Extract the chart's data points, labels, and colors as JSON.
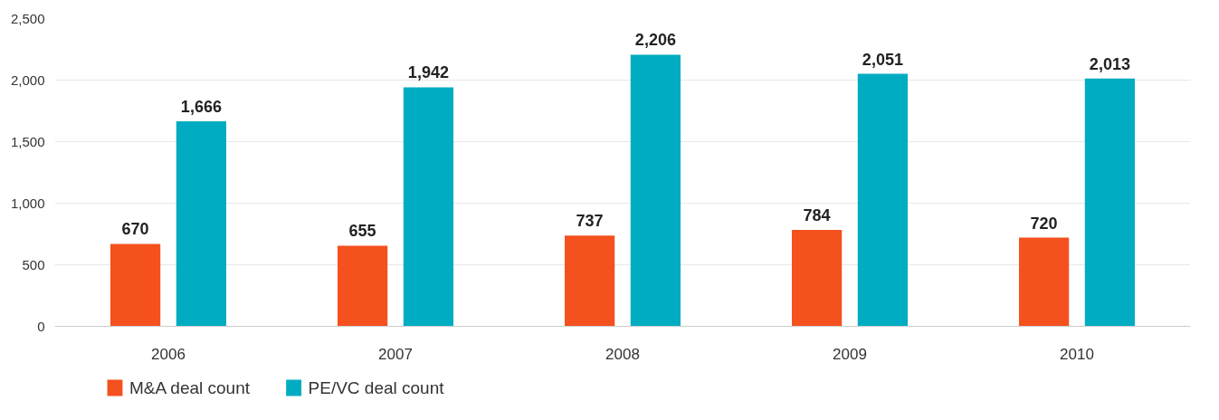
{
  "chart_data": {
    "type": "bar",
    "categories": [
      "2006",
      "2007",
      "2008",
      "2009",
      "2010"
    ],
    "series": [
      {
        "name": "M&A deal count",
        "color": "#f4511e",
        "values": [
          670,
          655,
          737,
          784,
          720
        ],
        "value_labels": [
          "670",
          "655",
          "737",
          "784",
          "720"
        ]
      },
      {
        "name": "PE/VC deal count",
        "color": "#00acc1",
        "values": [
          1666,
          1942,
          2206,
          2051,
          2013
        ],
        "value_labels": [
          "1,666",
          "1,942",
          "2,206",
          "2,051",
          "2,013"
        ]
      }
    ],
    "ylim": [
      0,
      2500
    ],
    "yticks": [
      0,
      500,
      {
        "value": 1000,
        "label": "1,000"
      },
      {
        "value": 1500,
        "label": "1,500"
      },
      {
        "value": 2000,
        "label": "2,000"
      },
      {
        "value": 2500,
        "label": "2,500"
      }
    ],
    "grid": "y",
    "legend": "bottom left"
  }
}
